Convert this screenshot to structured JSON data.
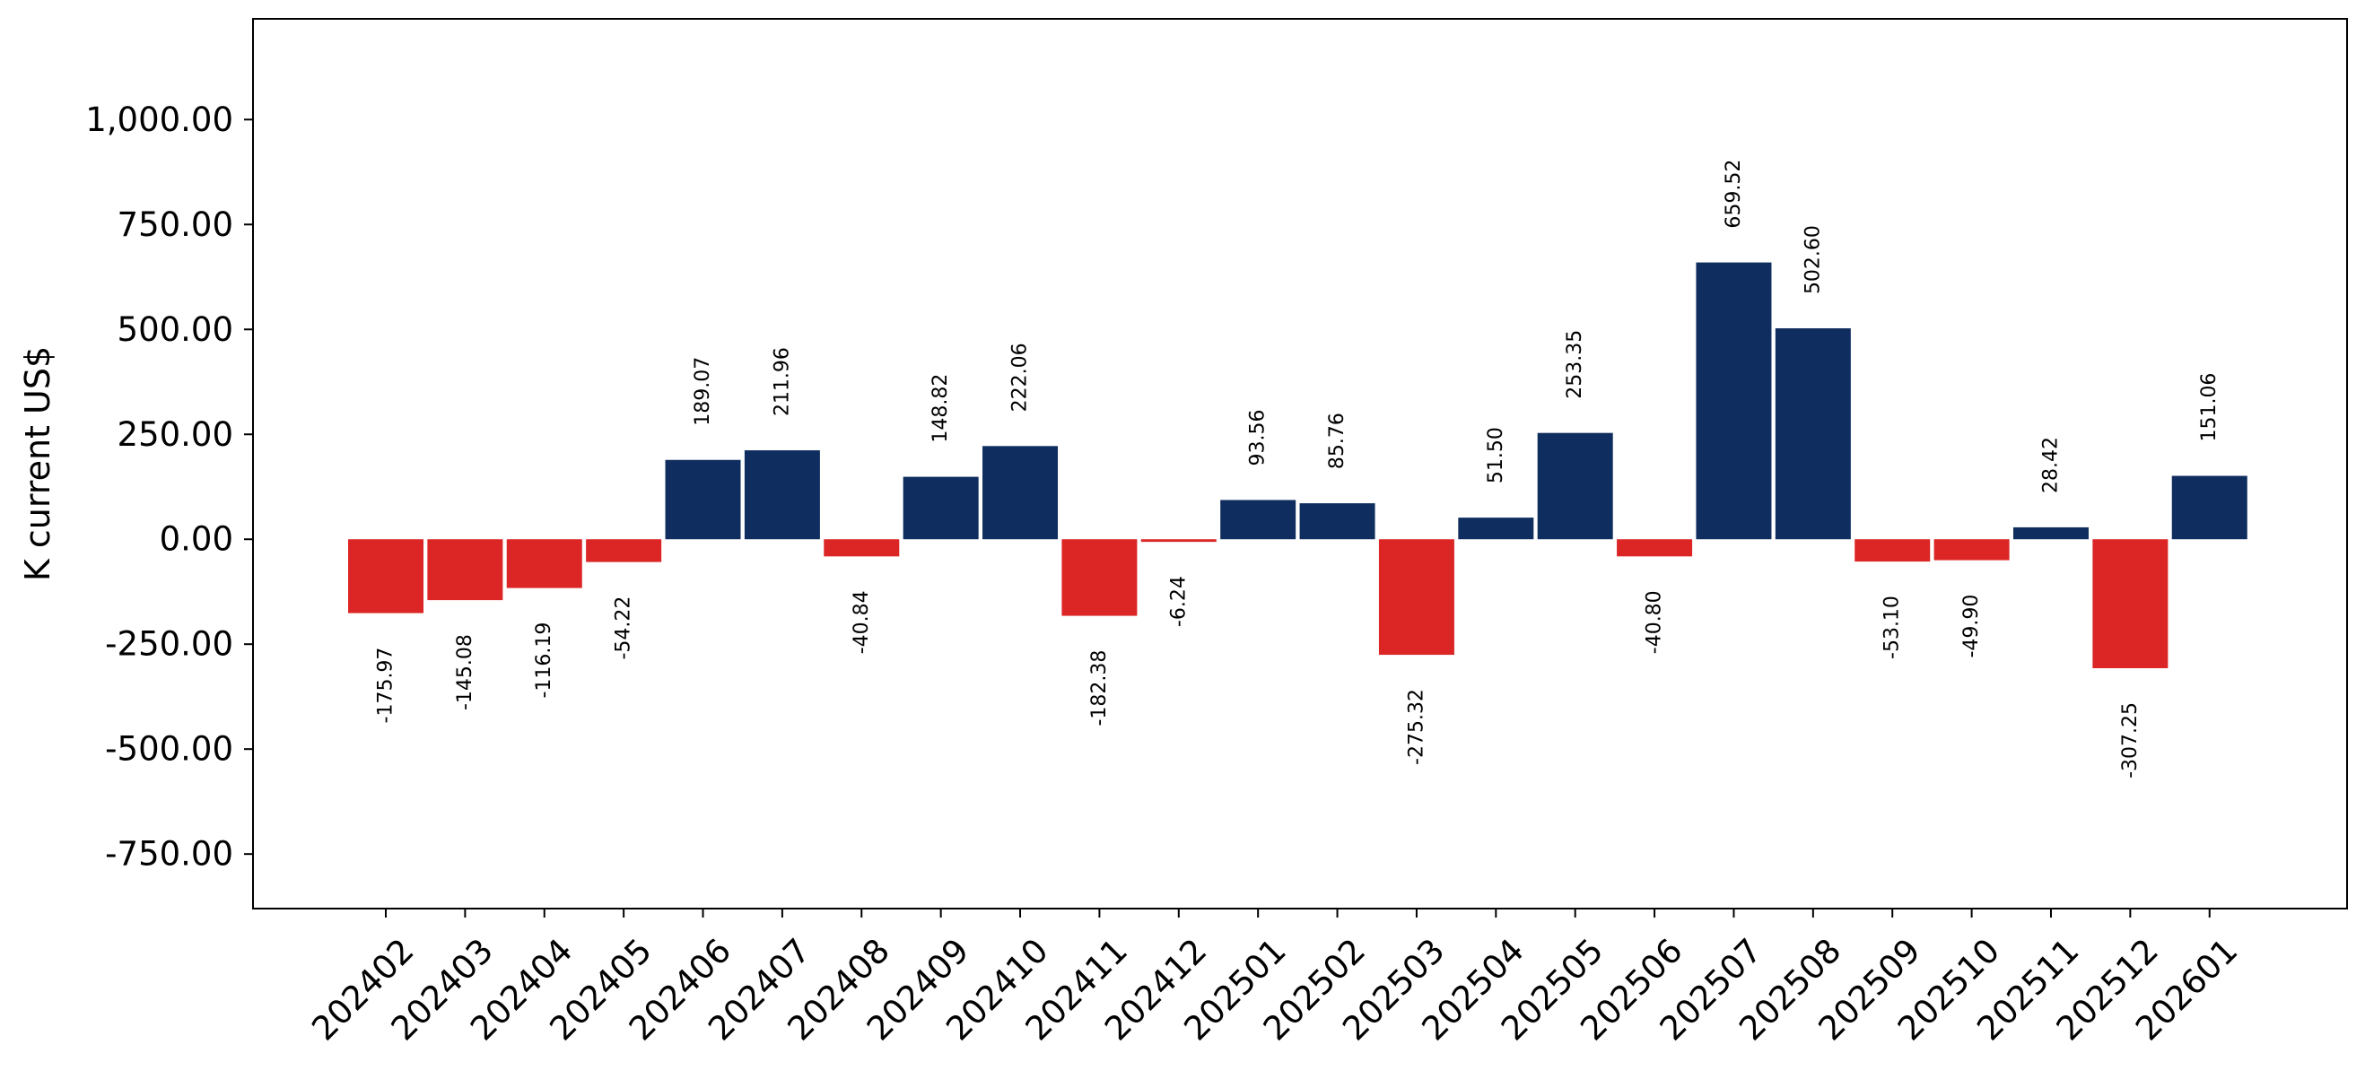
{
  "chart_data": {
    "type": "bar",
    "title": "",
    "xlabel": "",
    "ylabel": "K current US$",
    "ylim": [
      -880,
      1240
    ],
    "yticks": [
      -750,
      -500,
      -250,
      0,
      250,
      500,
      750,
      1000
    ],
    "ytick_labels": [
      "-750.00",
      "-500.00",
      "-250.00",
      "0.00",
      "250.00",
      "500.00",
      "750.00",
      "1,000.00"
    ],
    "grid": false,
    "legend": "none",
    "positive_color": "#0f2d5e",
    "negative_color": "#dc2626",
    "categories": [
      "202402",
      "202403",
      "202404",
      "202405",
      "202406",
      "202407",
      "202408",
      "202409",
      "202410",
      "202411",
      "202412",
      "202501",
      "202502",
      "202503",
      "202504",
      "202505",
      "202506",
      "202507",
      "202508",
      "202509",
      "202510",
      "202511",
      "202512",
      "202601"
    ],
    "values": [
      -175.97,
      -145.08,
      -116.19,
      -54.22,
      189.07,
      211.96,
      -40.84,
      148.82,
      222.06,
      -182.38,
      -6.24,
      93.56,
      85.76,
      -275.32,
      51.5,
      253.35,
      -40.8,
      659.52,
      502.6,
      -53.1,
      -49.9,
      28.42,
      -307.25,
      151.06
    ],
    "data_labels": [
      "-175.97",
      "-145.08",
      "-116.19",
      "-54.22",
      "189.07",
      "211.96",
      "-40.84",
      "148.82",
      "222.06",
      "-182.38",
      "-6.24",
      "93.56",
      "85.76",
      "-275.32",
      "51.50",
      "253.35",
      "-40.80",
      "659.52",
      "502.60",
      "-53.10",
      "-49.90",
      "28.42",
      "-307.25",
      "151.06"
    ]
  }
}
